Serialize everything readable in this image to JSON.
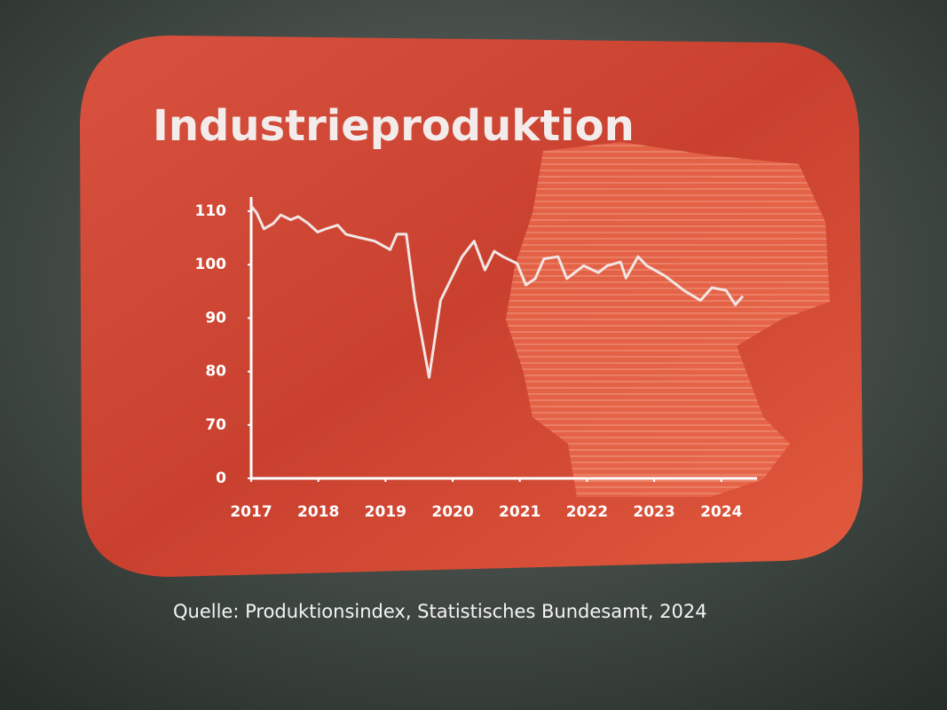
{
  "chart_data": {
    "type": "line",
    "title": "Industrieproduktion",
    "source": "Quelle: Produktionsindex, Statistisches Bundesamt, 2024",
    "color": "#f2e6e4",
    "x": [
      2017.0,
      2017.08,
      2017.19,
      2017.33,
      2017.44,
      2017.59,
      2017.7,
      2017.85,
      2017.99,
      2018.11,
      2018.29,
      2018.41,
      2018.6,
      2018.84,
      2019.07,
      2019.17,
      2019.31,
      2019.44,
      2019.65,
      2019.82,
      2019.96,
      2020.14,
      2020.32,
      2020.48,
      2020.62,
      2020.75,
      2020.96,
      2021.09,
      2021.23,
      2021.36,
      2021.57,
      2021.7,
      2021.95,
      2022.17,
      2022.3,
      2022.5,
      2022.58,
      2022.76,
      2022.89,
      2023.16,
      2023.44,
      2023.69,
      2023.86,
      2024.07,
      2024.21,
      2024.32
    ],
    "values": [
      111,
      109.7,
      106.7,
      107.7,
      109.3,
      108.4,
      109,
      107.7,
      106.1,
      106.7,
      107.4,
      105.7,
      105.1,
      104.4,
      102.8,
      105.7,
      105.7,
      93.3,
      78.9,
      93.3,
      96.9,
      101.5,
      104.4,
      99,
      102.5,
      101.5,
      100.2,
      96.2,
      97.4,
      101.1,
      101.5,
      97.4,
      99.8,
      98.5,
      99.8,
      100.5,
      97.5,
      101.5,
      99.8,
      97.9,
      95.2,
      93.3,
      95.7,
      95.2,
      92.5,
      94.1
    ],
    "xlim": [
      2017,
      2024.4
    ],
    "xticks": [
      2017,
      2018,
      2019,
      2020,
      2021,
      2022,
      2023,
      2024
    ],
    "ylim": [
      0,
      112
    ],
    "yticks": [
      0,
      70,
      80,
      90,
      100,
      110
    ]
  }
}
